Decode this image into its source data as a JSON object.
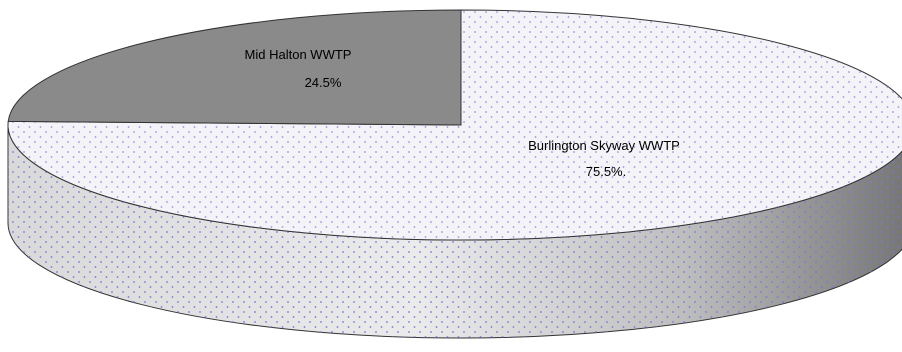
{
  "chart_data": {
    "type": "pie",
    "style": "3d",
    "slices": [
      {
        "label": "Burlington Skyway WWTP",
        "value": 75.5,
        "value_label": "75.5%.",
        "fill": "#f3f3f8",
        "dot_color": "#7777dd"
      },
      {
        "label": "Mid Halton WWTP",
        "value": 24.5,
        "value_label": "24.5%",
        "fill": "#8a8a8a"
      }
    ],
    "legend": "none",
    "grid": false
  }
}
